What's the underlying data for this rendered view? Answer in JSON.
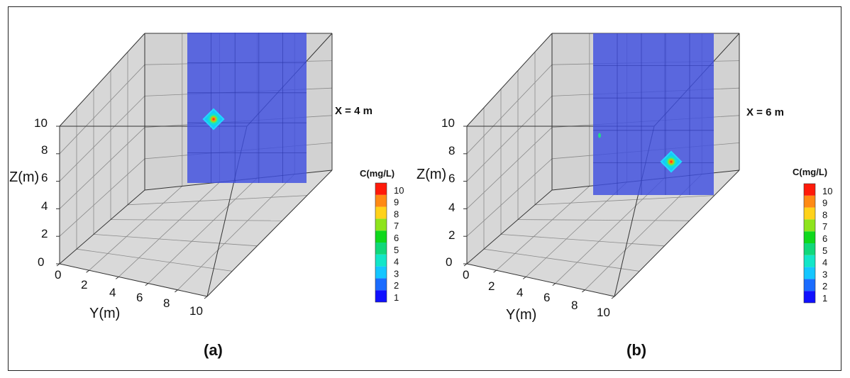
{
  "chart_data": [
    {
      "type": "heatmap",
      "panel_label": "(a)",
      "annotation": "X = 4 m",
      "xlabel": "Y(m)",
      "ylabel": "Z(m)",
      "y_ticks": [
        "0",
        "2",
        "4",
        "6",
        "8",
        "10"
      ],
      "z_ticks": [
        "0",
        "2",
        "4",
        "6",
        "8",
        "10"
      ],
      "ylim": [
        0,
        10
      ],
      "zlim": [
        0,
        10
      ],
      "slice_x": 4,
      "plume": {
        "y": 1.3,
        "z": 6.4,
        "c_max": 10
      },
      "colorbar": {
        "title": "C(mg/L)",
        "levels": [
          "1",
          "2",
          "3",
          "4",
          "5",
          "6",
          "7",
          "8",
          "9",
          "10"
        ]
      }
    },
    {
      "type": "heatmap",
      "panel_label": "(b)",
      "annotation": "X = 6 m",
      "xlabel": "Y(m)",
      "ylabel": "Z(m)",
      "y_ticks": [
        "0",
        "2",
        "4",
        "6",
        "8",
        "10"
      ],
      "z_ticks": [
        "0",
        "2",
        "4",
        "6",
        "8",
        "10"
      ],
      "ylim": [
        0,
        10
      ],
      "zlim": [
        0,
        10
      ],
      "slice_x": 6,
      "plume": {
        "y": 5.6,
        "z": 1.3,
        "c_max": 10
      },
      "colorbar": {
        "title": "C(mg/L)",
        "levels": [
          "1",
          "2",
          "3",
          "4",
          "5",
          "6",
          "7",
          "8",
          "9",
          "10"
        ]
      }
    }
  ],
  "colors": {
    "slice": "#3f4fe0",
    "box_face": "#d0d0d0",
    "grid": "#8a8a8a",
    "colorbar": [
      "#1010ff",
      "#1a6cff",
      "#14c6ff",
      "#12e6c8",
      "#10d87a",
      "#0fd81c",
      "#8ee41c",
      "#ffd21a",
      "#ff8a14",
      "#ff1a0a"
    ]
  }
}
